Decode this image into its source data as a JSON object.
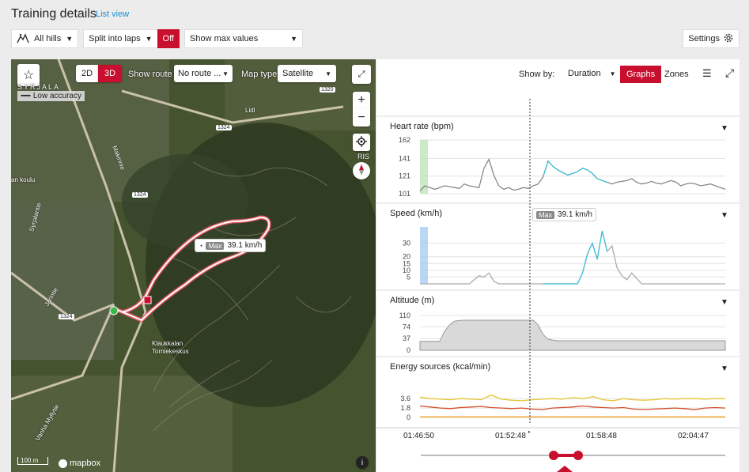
{
  "header": {
    "title": "Training details",
    "list_view": "List view"
  },
  "toolbar": {
    "hills": "All hills",
    "laps": "Split into laps",
    "laps_state": "Off",
    "max_values": "Show max values",
    "settings": "Settings"
  },
  "map": {
    "mode_2d": "2D",
    "mode_3d": "3D",
    "show_route_label": "Show route",
    "route_value": "No route ...",
    "map_type_label": "Map type",
    "map_type_value": "Satellite",
    "accuracy": "Low accuracy",
    "place_syrjala": "SYRJALA",
    "place_lidl": "Lidl",
    "place_koulu": "an koulu",
    "place_klaukkala": "Klaukkalan Torniekeskus",
    "place_ris": "RIS",
    "street_mikintie": "Makirinie",
    "street_syrjalantie": "Syrjalantie",
    "street_jarintie": "Jarintie",
    "street_vanha": "Vanha Myllytie",
    "road_1324a": "1324",
    "road_1324b": "1324",
    "road_1324c": "1324",
    "road_1320": "1320",
    "scale": "100 m",
    "brand": "mapbox",
    "max_badge": "Max",
    "max_value": "39.1 km/h"
  },
  "panel": {
    "show_by": "Show by:",
    "duration": "Duration",
    "tab_graphs": "Graphs",
    "tab_zones": "Zones",
    "max_badge": "Max",
    "max_value": "39.1 km/h",
    "times": [
      "01:46:50",
      "01:52:48",
      "01:58:48",
      "02:04:47"
    ]
  },
  "chart_data": [
    {
      "type": "line",
      "title": "Heart rate (bpm)",
      "yticks": [
        162,
        141,
        121,
        101
      ],
      "ylim": [
        101,
        162
      ],
      "values": [
        104,
        110,
        108,
        106,
        108,
        110,
        109,
        108,
        107,
        112,
        110,
        109,
        108,
        130,
        140,
        122,
        110,
        106,
        108,
        105,
        106,
        108,
        107,
        110,
        112,
        120,
        138,
        132,
        128,
        125,
        122,
        124,
        126,
        130,
        128,
        124,
        118,
        116,
        114,
        112,
        114,
        115,
        116,
        118,
        114,
        112,
        113,
        115,
        113,
        112,
        114,
        116,
        114,
        110,
        112,
        113,
        112,
        110,
        111,
        112,
        110,
        108,
        106
      ]
    },
    {
      "type": "line",
      "title": "Speed (km/h)",
      "yticks": [
        30,
        20,
        15,
        10,
        5
      ],
      "ylim": [
        0,
        42
      ],
      "values": [
        0,
        0,
        0,
        0,
        0,
        0,
        0,
        0,
        0,
        0,
        0,
        3,
        6,
        5,
        8,
        2,
        0,
        0,
        0,
        0,
        0,
        0,
        0,
        0,
        0,
        0,
        0,
        0,
        0,
        0,
        0,
        0,
        0,
        8,
        22,
        30,
        18,
        39.1,
        24,
        28,
        12,
        6,
        3,
        8,
        4,
        0,
        0,
        0,
        0,
        0,
        0,
        0,
        0,
        0,
        0,
        0,
        0,
        0,
        0,
        0,
        0,
        0,
        0
      ]
    },
    {
      "type": "area",
      "title": "Altitude (m)",
      "yticks": [
        110,
        74,
        37,
        0
      ],
      "ylim": [
        0,
        110
      ],
      "values": [
        28,
        28,
        28,
        28,
        28,
        60,
        80,
        92,
        94,
        95,
        95,
        95,
        95,
        95,
        95,
        95,
        95,
        95,
        95,
        95,
        95,
        95,
        95,
        95,
        80,
        50,
        35,
        32,
        30,
        30,
        30,
        30,
        30,
        30,
        30,
        30,
        30,
        30,
        30,
        30,
        30,
        30,
        30,
        30,
        30,
        30,
        30,
        30,
        30,
        30,
        30,
        30,
        30,
        30,
        30,
        30,
        30,
        30,
        30,
        30,
        30,
        30,
        30
      ]
    },
    {
      "type": "line",
      "title": "Energy sources (kcal/min)",
      "yticks": [
        3.6,
        1.8,
        0
      ],
      "ylim": [
        0,
        5
      ],
      "series": [
        {
          "color": "#e6c530",
          "values": [
            3.9,
            3.6,
            3.5,
            3.4,
            3.6,
            3.5,
            3.4,
            4.3,
            3.5,
            3.3,
            3.2,
            3.4,
            3.5,
            3.6,
            3.5,
            3.8,
            3.6,
            4.0,
            3.4,
            3.2,
            3.6,
            3.4,
            3.3,
            3.4,
            3.6,
            3.5,
            3.6,
            3.6,
            3.5,
            3.6,
            3.6
          ]
        },
        {
          "color": "#d44c2a",
          "values": [
            2.2,
            2.0,
            1.8,
            1.7,
            1.9,
            2.0,
            2.1,
            1.9,
            1.8,
            1.7,
            1.8,
            1.6,
            1.5,
            1.8,
            1.9,
            2.0,
            2.2,
            2.0,
            1.9,
            1.8,
            1.9,
            1.6,
            1.5,
            1.6,
            1.7,
            1.8,
            1.7,
            1.5,
            1.8,
            1.9,
            1.8
          ]
        },
        {
          "color": "#e8a020",
          "values": [
            0.1,
            0.1,
            0.1,
            0.1,
            0.1,
            0.1,
            0.1,
            0.1,
            0.1,
            0.1,
            0.1,
            0.1,
            0.1,
            0.1,
            0.1,
            0.1,
            0.1,
            0.1,
            0.1,
            0.1,
            0.1,
            0.1,
            0.1,
            0.1,
            0.1,
            0.1,
            0.1,
            0.1,
            0.1,
            0.1,
            0.1
          ]
        }
      ]
    }
  ]
}
